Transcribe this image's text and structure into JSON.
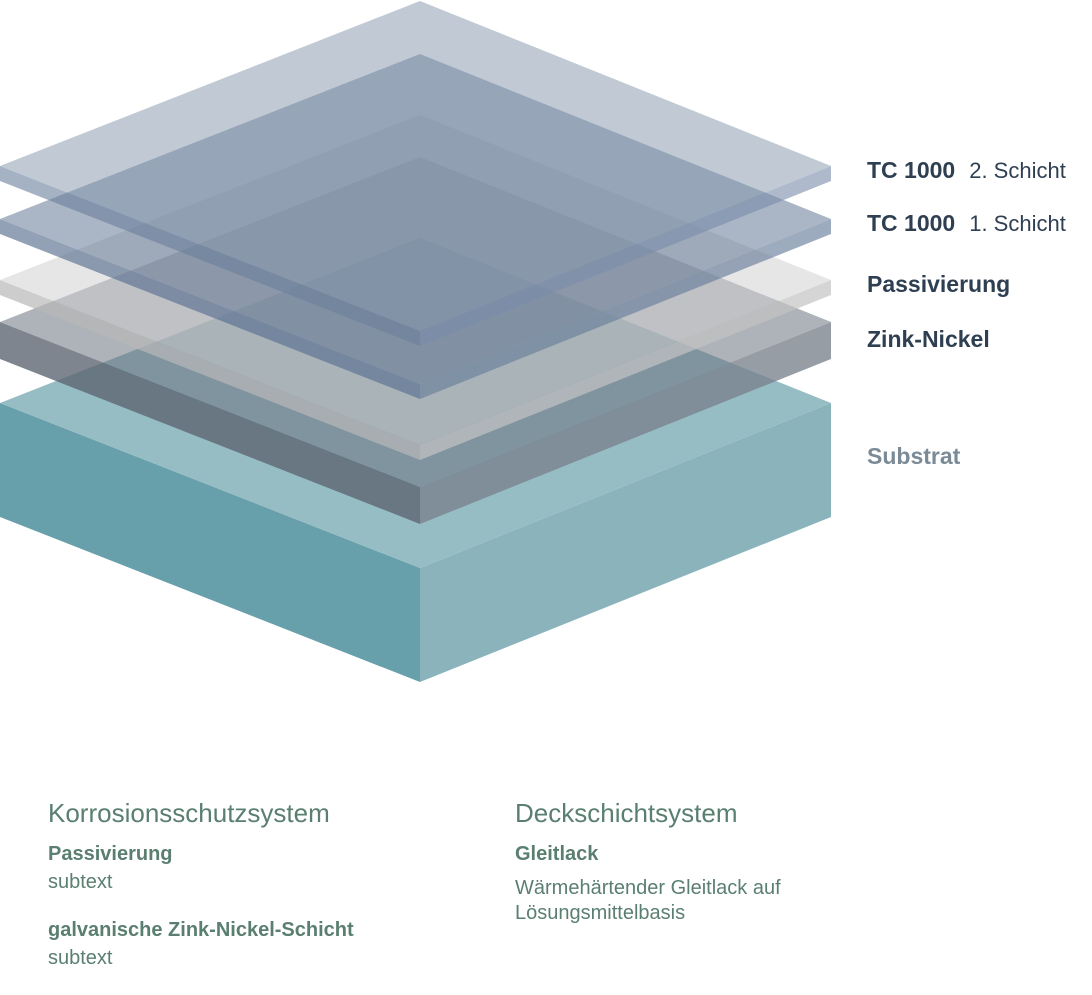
{
  "layers": [
    {
      "id": "tc1000-2",
      "title": "TC 1000",
      "subtitle": "2. Schicht"
    },
    {
      "id": "tc1000-1",
      "title": "TC 1000",
      "subtitle": "1. Schicht"
    },
    {
      "id": "passivierung",
      "title": "Passivierung",
      "subtitle": ""
    },
    {
      "id": "zink-nickel",
      "title": "Zink-Nickel",
      "subtitle": ""
    },
    {
      "id": "substrat",
      "title": "Substrat",
      "subtitle": ""
    }
  ],
  "colors": {
    "substrate_left": "#679fab",
    "substrate_right": "#8ab3bb",
    "substrate_top": "#97bdc4",
    "zinc_nickel": "#6b7480",
    "passivation": "#c8c8c8",
    "tc1000": "#5d7290",
    "heading_green": "#5a7f70",
    "label_dark": "#2f3f52",
    "label_muted": "#7a8a96"
  },
  "columns": [
    {
      "heading": "Korrosionsschutzsystem",
      "items": [
        {
          "title": "Passivierung",
          "text": "subtext"
        },
        {
          "title": "galvanische Zink-Nickel-Schicht",
          "text": "subtext"
        }
      ]
    },
    {
      "heading": "Deckschichtsystem",
      "items": [
        {
          "title": "Gleitlack",
          "text": "Wärmehärtender Gleitlack auf Lösungsmittelbasis"
        }
      ]
    }
  ]
}
